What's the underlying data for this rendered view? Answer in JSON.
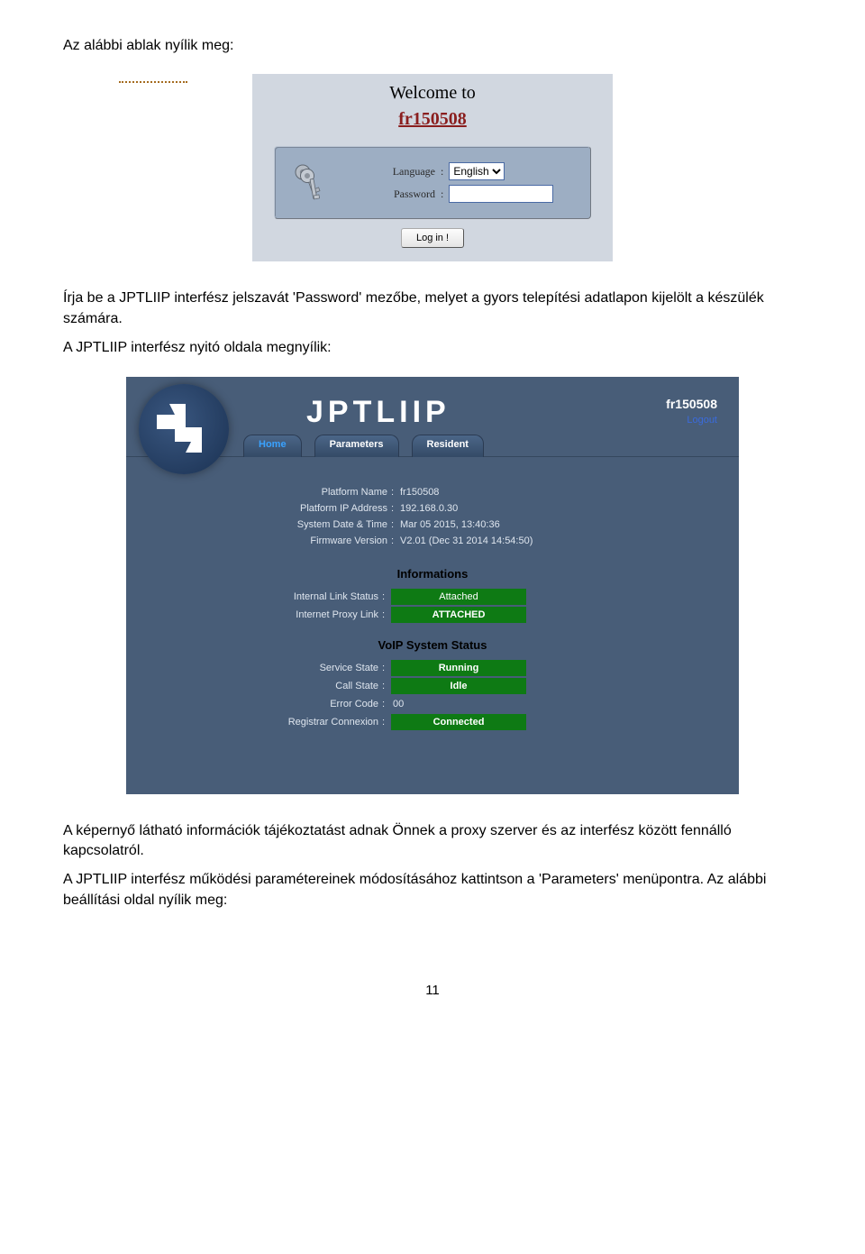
{
  "colors": {
    "page_bg": "#ffffff",
    "login_panel_bg": "#d1d7e0",
    "login_box_bg": "#9daec3",
    "devname_color": "#8a1e1e",
    "admin_bg": "#485d78",
    "logo_grad_a": "#3a5780",
    "logo_grad_b": "#1a3152",
    "status_green": "#0e7a14",
    "tab_active": "#39a2ff",
    "link_blue": "#3a6bdc",
    "text_light": "#dfe6ef"
  },
  "intro_text": "Az alábbi ablak nyílik meg:",
  "login": {
    "welcome": "Welcome to",
    "device": "fr150508",
    "language_label": "Language",
    "language_value": "English",
    "password_label": "Password",
    "password_value": "",
    "button": "Log in !"
  },
  "para2": "Írja be a JPTLIIP interfész jelszavát 'Password' mezőbe, melyet a gyors telepítési adatlapon kijelölt a készülék számára.",
  "para3": "A JPTLIIP interfész nyitó oldala megnyílik:",
  "admin": {
    "brand": "JPTLIIP",
    "device_id": "fr150508",
    "logout": "Logout",
    "tabs": [
      {
        "label": "Home",
        "active": true
      },
      {
        "label": "Parameters",
        "active": false
      },
      {
        "label": "Resident",
        "active": false
      }
    ],
    "platform_rows": [
      {
        "label": "Platform Name",
        "value": "fr150508"
      },
      {
        "label": "Platform IP Address",
        "value": "192.168.0.30"
      },
      {
        "label": "System Date & Time",
        "value": "Mar 05 2015, 13:40:36"
      },
      {
        "label": "Firmware Version",
        "value": "V2.01 (Dec 31 2014 14:54:50)"
      }
    ],
    "section_info": "Informations",
    "info_rows": [
      {
        "label": "Internal Link Status",
        "value": "Attached",
        "bg": "#0e7a14",
        "bold": false
      },
      {
        "label": "Internet Proxy Link",
        "value": "ATTACHED",
        "bg": "#0e7a14",
        "bold": true
      }
    ],
    "section_voip": "VoIP System Status",
    "voip_rows": [
      {
        "label": "Service State",
        "value": "Running",
        "badge": true,
        "bg": "#0e7a14"
      },
      {
        "label": "Call State",
        "value": "Idle",
        "badge": true,
        "bg": "#0e7a14"
      },
      {
        "label": "Error Code",
        "value": "00",
        "badge": false
      },
      {
        "label": "Registrar Connexion",
        "value": "Connected",
        "badge": true,
        "bg": "#0e7a14"
      }
    ]
  },
  "para4": "A képernyő látható információk tájékoztatást adnak Önnek a proxy szerver és az interfész között fennálló kapcsolatról.",
  "para5": "A JPTLIIP interfész működési paramétereinek módosításához kattintson a 'Parameters' menüpontra. Az alábbi beállítási oldal nyílik meg:",
  "page_number": "11"
}
